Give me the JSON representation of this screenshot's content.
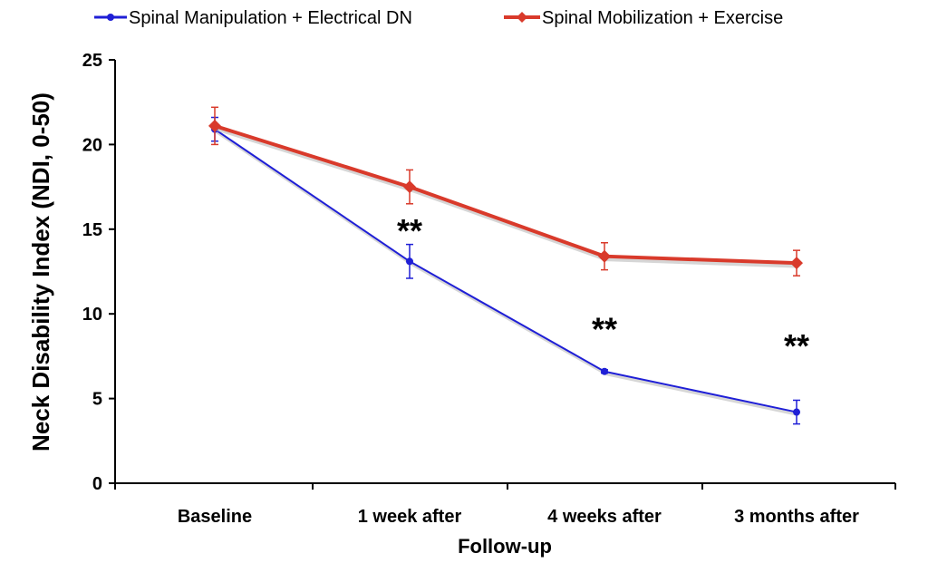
{
  "chart_data": {
    "type": "line",
    "categories": [
      "Baseline",
      "1 week after",
      "4 weeks after",
      "3 months after"
    ],
    "xlabel": "Follow-up",
    "ylabel": "Neck Disability Index (NDI, 0-50)",
    "ylim": [
      0,
      25
    ],
    "yticks": [
      "0",
      "5",
      "10",
      "15",
      "20",
      "25"
    ],
    "grid": false,
    "legend_position": "top",
    "series": [
      {
        "name": "Spinal Manipulation + Electrical DN",
        "color": "#1f1fd6",
        "marker": "circle",
        "values": [
          20.9,
          13.1,
          6.6,
          4.2
        ],
        "errors": [
          0.7,
          1.0,
          0.1,
          0.7
        ]
      },
      {
        "name": "Spinal Mobilization + Exercise",
        "color": "#d93a2b",
        "marker": "diamond",
        "values": [
          21.1,
          17.5,
          13.4,
          13.0
        ],
        "errors": [
          1.1,
          1.0,
          0.8,
          0.75
        ]
      }
    ],
    "annotations": [
      {
        "category": "1 week after",
        "text": "**",
        "y": 15.2
      },
      {
        "category": "4 weeks after",
        "text": "**",
        "y": 9.4
      },
      {
        "category": "3 months after",
        "text": "**",
        "y": 8.4
      }
    ]
  }
}
